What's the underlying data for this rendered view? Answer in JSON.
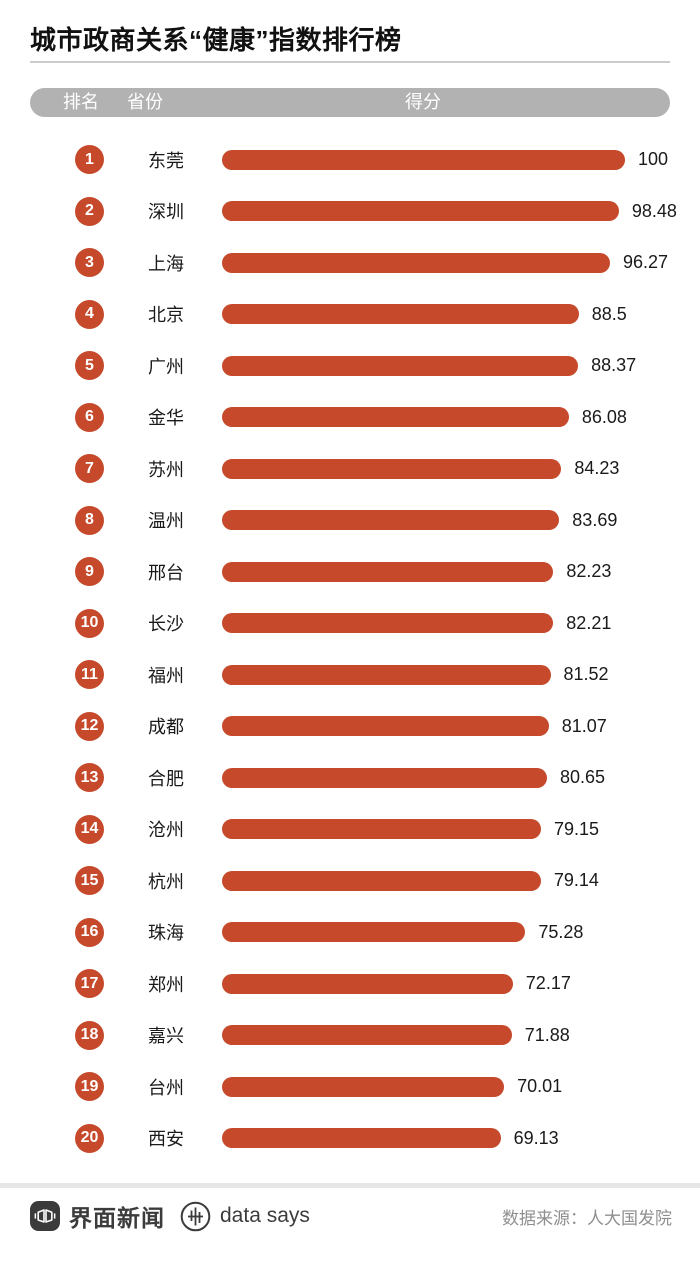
{
  "page": {
    "title": "城市政商关系“健康”指数排行榜",
    "header": {
      "rank_label": "排名",
      "province_label": "省份",
      "score_label": "得分"
    },
    "footer": {
      "brand_left": "界面新闻",
      "brand_right": "data says",
      "source": "数据来源：人大国发院"
    }
  },
  "colors": {
    "accent": "#c5492a",
    "header_bar_bg": "#b2b2b2",
    "divider": "#cccccc",
    "footer_band": "#e7e7e7",
    "footer_text": "#3c3c3c",
    "source_text": "#8f8f8f"
  },
  "chart_data": {
    "type": "bar",
    "orientation": "horizontal",
    "title": "城市政商关系“健康”指数排行榜",
    "categories": [
      "东莞",
      "深圳",
      "上海",
      "北京",
      "广州",
      "金华",
      "苏州",
      "温州",
      "邢台",
      "长沙",
      "福州",
      "成都",
      "合肥",
      "沧州",
      "杭州",
      "珠海",
      "郑州",
      "嘉兴",
      "台州",
      "西安"
    ],
    "ranks": [
      1,
      2,
      3,
      4,
      5,
      6,
      7,
      8,
      9,
      10,
      11,
      12,
      13,
      14,
      15,
      16,
      17,
      18,
      19,
      20
    ],
    "values": [
      100,
      98.48,
      96.27,
      88.5,
      88.37,
      86.08,
      84.23,
      83.69,
      82.23,
      82.21,
      81.52,
      81.07,
      80.65,
      79.15,
      79.14,
      75.28,
      72.17,
      71.88,
      70.01,
      69.13
    ],
    "xlim": [
      0,
      100
    ],
    "value_labels_shown": true,
    "grid": false,
    "legend": false
  }
}
